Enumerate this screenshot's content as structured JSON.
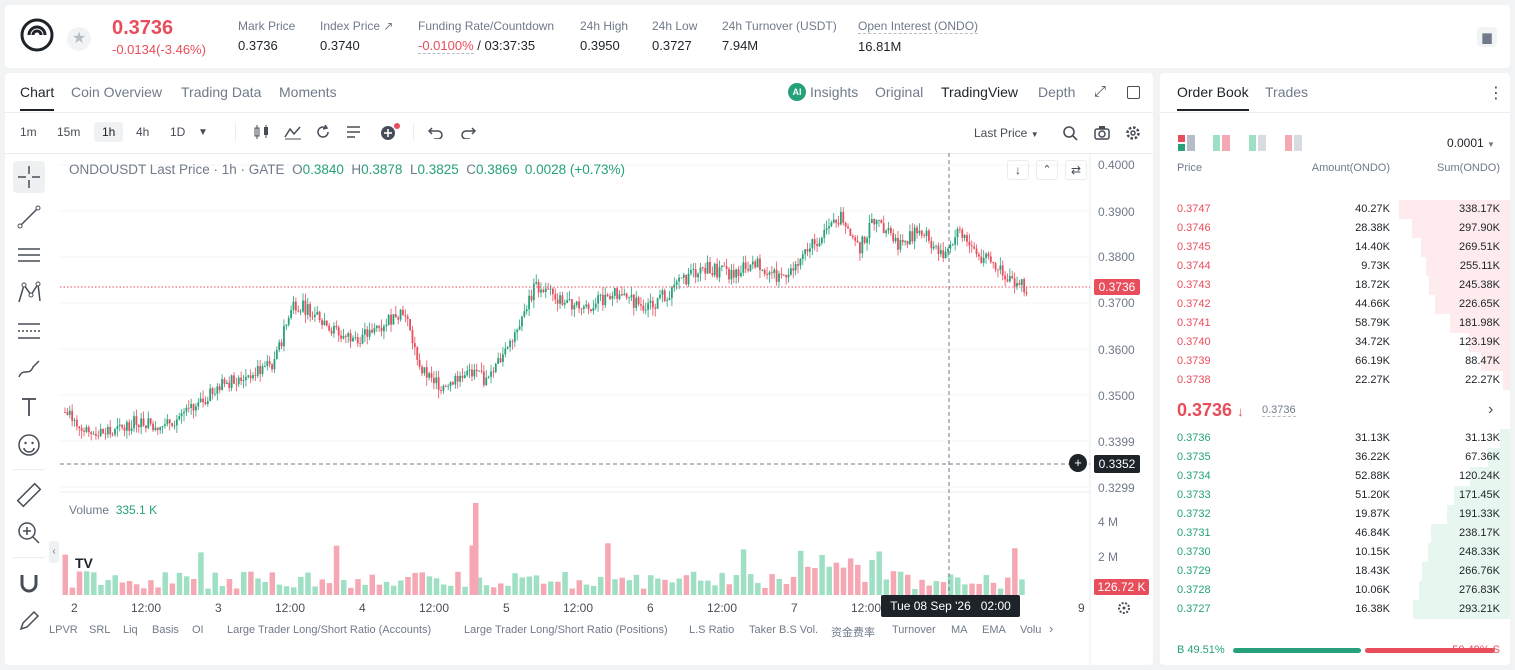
{
  "header": {
    "last_price": "0.3736",
    "change": "-0.0134(-3.46%)",
    "stats": [
      {
        "label": "Mark Price",
        "value": "0.3736"
      },
      {
        "label": "Index Price ↗",
        "value": "0.3740"
      },
      {
        "label": "Funding Rate/Countdown",
        "value_neg": "-0.0100%",
        "value": "/ 03:37:35"
      },
      {
        "label": "24h High",
        "value": "0.3950"
      },
      {
        "label": "24h Low",
        "value": "0.3727"
      },
      {
        "label": "24h Turnover (USDT)",
        "value": "7.94M"
      },
      {
        "label": "Open Interest (ONDO)",
        "value": "16.81M"
      }
    ]
  },
  "main_tabs": [
    "Chart",
    "Coin Overview",
    "Trading Data",
    "Moments"
  ],
  "view_tabs": {
    "insights": "Insights",
    "original": "Original",
    "tradingview": "TradingView",
    "depth": "Depth"
  },
  "timeframes": [
    "1m",
    "15m",
    "1h",
    "4h",
    "1D"
  ],
  "price_type": "Last Price",
  "chart_legend": {
    "symbol": "ONDOUSDT Last Price · 1h · GATE",
    "o_label": "O",
    "o": "0.3840",
    "h_label": "H",
    "h": "0.3878",
    "l_label": "L",
    "l": "0.3825",
    "c_label": "C",
    "c": "0.3869",
    "chg": "0.0028 (+0.73%)"
  },
  "volume_legend": {
    "label": "Volume",
    "value": "335.1 K"
  },
  "price_ticks": [
    "0.4000",
    "0.3900",
    "0.3800",
    "0.3700",
    "0.3600",
    "0.3500",
    "0.3399",
    "0.3299"
  ],
  "current_price_tag": "0.3736",
  "crosshair_price_tag": "0.3352",
  "volume_ticks": [
    "4 M",
    "2 M"
  ],
  "volume_tag": "126.72 K",
  "time_ticks": [
    "2",
    "12:00",
    "3",
    "12:00",
    "4",
    "12:00",
    "5",
    "12:00",
    "6",
    "12:00",
    "7",
    "12:00",
    "9"
  ],
  "crosshair_time": "Tue 08 Sep '26   02:00",
  "indicators": [
    "LPVR",
    "SRL",
    "Liq",
    "Basis",
    "OI",
    "Large Trader Long/Short Ratio (Accounts)",
    "Large Trader Long/Short Ratio (Positions)",
    "L.S Ratio",
    "Taker B.S Vol.",
    "资金费率",
    "Turnover",
    "MA",
    "EMA",
    "Volu"
  ],
  "colors": {
    "up": "#26a17b",
    "down": "#e84d5c",
    "up_vol": "#9fe0c4",
    "down_vol": "#f5a8b4"
  },
  "orderbook": {
    "tabs": [
      "Order Book",
      "Trades"
    ],
    "precision": "0.0001",
    "headers": [
      "Price",
      "Amount(ONDO)",
      "Sum(ONDO)"
    ],
    "asks": [
      {
        "price": "0.3747",
        "amount": "40.27K",
        "sum": "338.17K",
        "depth": 0.337
      },
      {
        "price": "0.3746",
        "amount": "28.38K",
        "sum": "297.90K",
        "depth": 0.297
      },
      {
        "price": "0.3745",
        "amount": "14.40K",
        "sum": "269.51K",
        "depth": 0.269
      },
      {
        "price": "0.3744",
        "amount": "9.73K",
        "sum": "255.11K",
        "depth": 0.254
      },
      {
        "price": "0.3743",
        "amount": "18.72K",
        "sum": "245.38K",
        "depth": 0.245
      },
      {
        "price": "0.3742",
        "amount": "44.66K",
        "sum": "226.65K",
        "depth": 0.226
      },
      {
        "price": "0.3741",
        "amount": "58.79K",
        "sum": "181.98K",
        "depth": 0.181
      },
      {
        "price": "0.3740",
        "amount": "34.72K",
        "sum": "123.19K",
        "depth": 0.123
      },
      {
        "price": "0.3739",
        "amount": "66.19K",
        "sum": "88.47K",
        "depth": 0.088
      },
      {
        "price": "0.3738",
        "amount": "22.27K",
        "sum": "22.27K",
        "depth": 0.022
      }
    ],
    "mid_price": "0.3736",
    "mid_mark": "0.3736",
    "bids": [
      {
        "price": "0.3736",
        "amount": "31.13K",
        "sum": "31.13K",
        "depth": 0.031
      },
      {
        "price": "0.3735",
        "amount": "36.22K",
        "sum": "67.36K",
        "depth": 0.067
      },
      {
        "price": "0.3734",
        "amount": "52.88K",
        "sum": "120.24K",
        "depth": 0.12
      },
      {
        "price": "0.3733",
        "amount": "51.20K",
        "sum": "171.45K",
        "depth": 0.171
      },
      {
        "price": "0.3732",
        "amount": "19.87K",
        "sum": "191.33K",
        "depth": 0.191
      },
      {
        "price": "0.3731",
        "amount": "46.84K",
        "sum": "238.17K",
        "depth": 0.238
      },
      {
        "price": "0.3730",
        "amount": "10.15K",
        "sum": "248.33K",
        "depth": 0.248
      },
      {
        "price": "0.3729",
        "amount": "18.43K",
        "sum": "266.76K",
        "depth": 0.266
      },
      {
        "price": "0.3728",
        "amount": "10.06K",
        "sum": "276.83K",
        "depth": 0.276
      },
      {
        "price": "0.3727",
        "amount": "16.38K",
        "sum": "293.21K",
        "depth": 0.293
      }
    ],
    "buy_ratio": "B 49.51%",
    "sell_ratio": "50.49% S",
    "buy_fraction": 0.4951
  }
}
